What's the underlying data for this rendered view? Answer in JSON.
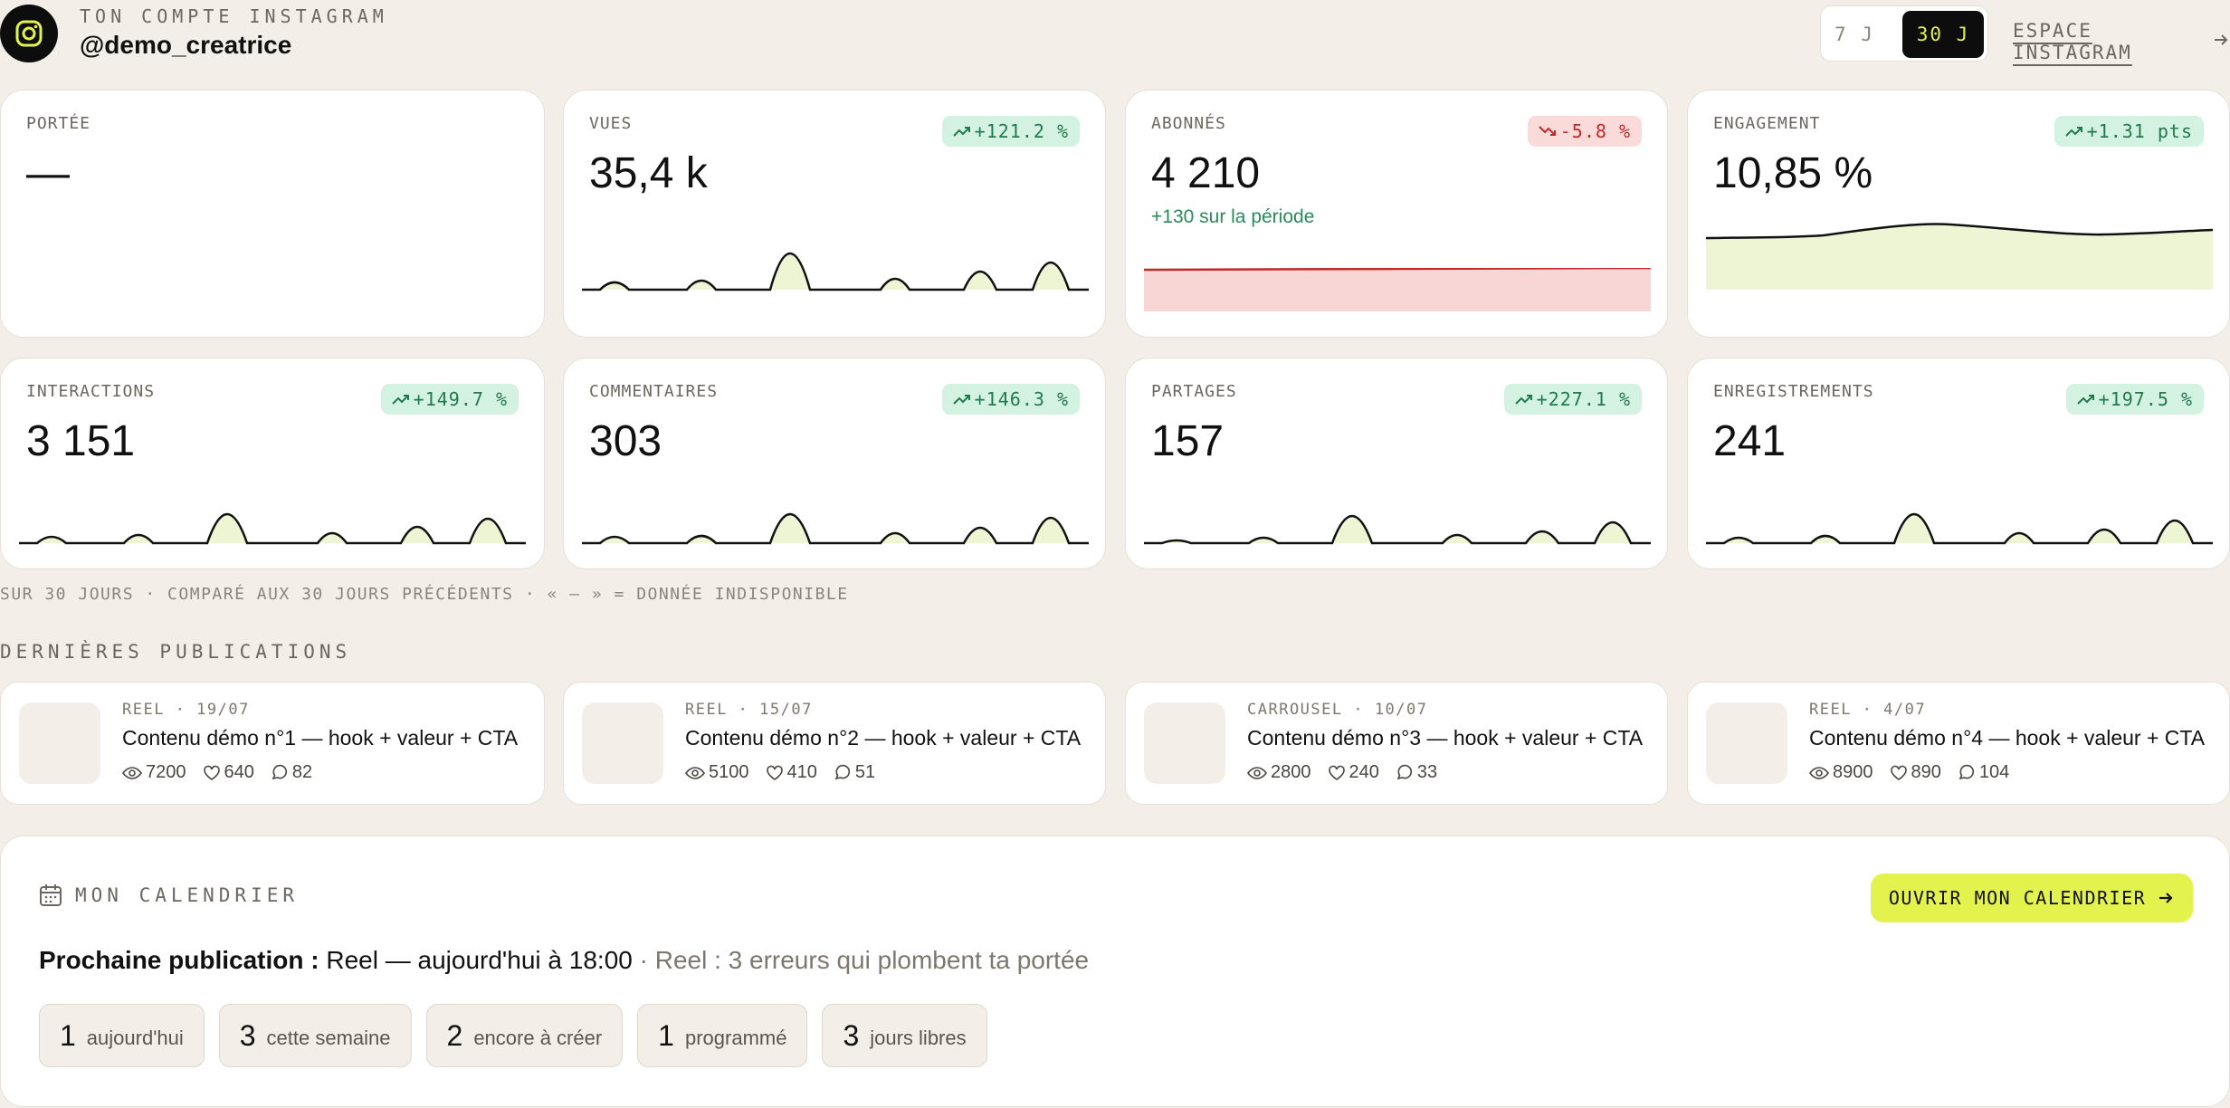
{
  "header": {
    "kicker": "TON COMPTE INSTAGRAM",
    "handle": "@demo_creatrice",
    "period_options": [
      "7 J",
      "30 J"
    ],
    "active_period": "30 J",
    "espace_link": "ESPACE INSTAGRAM",
    "accent": "#e3f24c"
  },
  "kpis": [
    {
      "label": "PORTÉE",
      "value": "—",
      "delta": "",
      "trend": "none",
      "sub": "",
      "chart": "none"
    },
    {
      "label": "VUES",
      "value": "35,4 k",
      "delta": "+121.2 %",
      "trend": "up",
      "sub": "",
      "chart": "spikes"
    },
    {
      "label": "ABONNÉS",
      "value": "4 210",
      "delta": "-5.8 %",
      "trend": "down",
      "sub": "+130 sur la période",
      "chart": "flat-red"
    },
    {
      "label": "ENGAGEMENT",
      "value": "10,85 %",
      "delta": "+1.31 pts",
      "trend": "up",
      "sub": "",
      "chart": "wave"
    },
    {
      "label": "INTERACTIONS",
      "value": "3 151",
      "delta": "+149.7 %",
      "trend": "up",
      "sub": "",
      "chart": "spikes"
    },
    {
      "label": "COMMENTAIRES",
      "value": "303",
      "delta": "+146.3 %",
      "trend": "up",
      "sub": "",
      "chart": "spikes"
    },
    {
      "label": "PARTAGES",
      "value": "157",
      "delta": "+227.1 %",
      "trend": "up",
      "sub": "",
      "chart": "spikes"
    },
    {
      "label": "ENREGISTREMENTS",
      "value": "241",
      "delta": "+197.5 %",
      "trend": "up",
      "sub": "",
      "chart": "spikes"
    }
  ],
  "footnote": "SUR 30 JOURS · COMPARÉ AUX 30 JOURS PRÉCÉDENTS · « — » = DONNÉE INDISPONIBLE",
  "posts_title": "DERNIÈRES PUBLICATIONS",
  "posts": [
    {
      "meta": "REEL · 19/07",
      "title": "Contenu démo n°1 — hook + valeur + CTA",
      "views": "7200",
      "likes": "640",
      "comments": "82"
    },
    {
      "meta": "REEL · 15/07",
      "title": "Contenu démo n°2 — hook + valeur + CTA",
      "views": "5100",
      "likes": "410",
      "comments": "51"
    },
    {
      "meta": "CARROUSEL · 10/07",
      "title": "Contenu démo n°3 — hook + valeur + CTA",
      "views": "2800",
      "likes": "240",
      "comments": "33"
    },
    {
      "meta": "REEL · 4/07",
      "title": "Contenu démo n°4 — hook + valeur + CTA",
      "views": "8900",
      "likes": "890",
      "comments": "104"
    }
  ],
  "calendar": {
    "title": "MON CALENDRIER",
    "open_button": "OUVRIR MON CALENDRIER",
    "next_label": "Prochaine publication :",
    "next_value": "Reel — aujourd'hui à 18:00",
    "next_extra": "· Reel : 3 erreurs qui plombent ta portée",
    "pills": [
      {
        "num": "1",
        "label": "aujourd'hui"
      },
      {
        "num": "3",
        "label": "cette semaine"
      },
      {
        "num": "2",
        "label": "encore à créer"
      },
      {
        "num": "1",
        "label": "programmé"
      },
      {
        "num": "3",
        "label": "jours libres"
      }
    ]
  }
}
